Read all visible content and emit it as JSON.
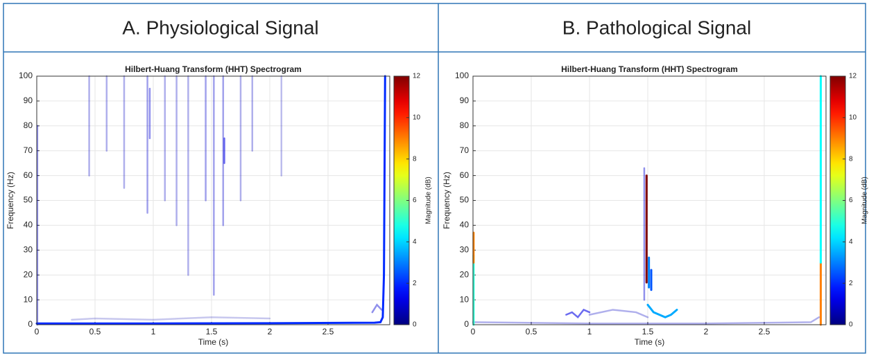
{
  "chart_data": [
    {
      "type": "spectrogram",
      "panel_title": "A. Physiological Signal",
      "title": "Hilbert-Huang Transform (HHT) Spectrogram",
      "x_label": "Time (s)",
      "y_label": "Frequency (Hz)",
      "xlim": [
        0,
        3.03
      ],
      "xticks": [
        0,
        0.5,
        1,
        1.5,
        2,
        2.5
      ],
      "ylim": [
        0,
        100
      ],
      "yticks": [
        0,
        10,
        20,
        30,
        40,
        50,
        60,
        70,
        80,
        90,
        100
      ],
      "grid": true,
      "colorbar": {
        "label": "Magnitude (dB)",
        "lim": [
          0,
          12
        ],
        "ticks": [
          0,
          2,
          4,
          6,
          8,
          10,
          12
        ],
        "colormap": "jet"
      },
      "traces": [
        {
          "x": [
            0.45,
            0.45
          ],
          "y": [
            100,
            60
          ],
          "magnitude": 0.8
        },
        {
          "x": [
            0.6,
            0.6
          ],
          "y": [
            100,
            70
          ],
          "magnitude": 0.8
        },
        {
          "x": [
            0.75,
            0.75
          ],
          "y": [
            100,
            55
          ],
          "magnitude": 0.8
        },
        {
          "x": [
            0.95,
            0.95
          ],
          "y": [
            100,
            45
          ],
          "magnitude": 0.9
        },
        {
          "x": [
            0.97,
            0.97
          ],
          "y": [
            95,
            75
          ],
          "magnitude": 1
        },
        {
          "x": [
            1.1,
            1.1
          ],
          "y": [
            100,
            50
          ],
          "magnitude": 0.8
        },
        {
          "x": [
            1.2,
            1.2
          ],
          "y": [
            100,
            40
          ],
          "magnitude": 0.8
        },
        {
          "x": [
            1.3,
            1.3
          ],
          "y": [
            100,
            20
          ],
          "magnitude": 0.8
        },
        {
          "x": [
            1.45,
            1.45
          ],
          "y": [
            100,
            50
          ],
          "magnitude": 0.9
        },
        {
          "x": [
            1.52,
            1.52
          ],
          "y": [
            100,
            12
          ],
          "magnitude": 0.9
        },
        {
          "x": [
            1.6,
            1.6
          ],
          "y": [
            100,
            40
          ],
          "magnitude": 0.9
        },
        {
          "x": [
            1.61,
            1.61
          ],
          "y": [
            75,
            65
          ],
          "magnitude": 1.2
        },
        {
          "x": [
            1.75,
            1.75
          ],
          "y": [
            100,
            50
          ],
          "magnitude": 0.8
        },
        {
          "x": [
            1.85,
            1.85
          ],
          "y": [
            100,
            70
          ],
          "magnitude": 0.8
        },
        {
          "x": [
            2.1,
            2.1
          ],
          "y": [
            100,
            60
          ],
          "magnitude": 0.7
        },
        {
          "x": [
            0.005,
            0.005
          ],
          "y": [
            0,
            80
          ],
          "magnitude": 1
        },
        {
          "x": [
            0.3,
            0.5,
            1,
            1.5,
            2
          ],
          "y": [
            2,
            2.5,
            2,
            3,
            2.5
          ],
          "magnitude": 0.6
        },
        {
          "x": [
            2.88,
            2.92,
            2.96
          ],
          "y": [
            5,
            8,
            6
          ],
          "magnitude": 1
        },
        {
          "x": [
            0,
            1,
            2,
            2.9,
            2.95,
            2.97,
            2.98,
            2.99
          ],
          "y": [
            0.5,
            0.5,
            0.6,
            0.8,
            1,
            3,
            20,
            100
          ],
          "magnitude": 2
        }
      ]
    },
    {
      "type": "spectrogram",
      "panel_title": "B. Pathological Signal",
      "title": "Hilbert-Huang Transform (HHT) Spectrogram",
      "x_label": "Time (s)",
      "y_label": "Frequency (Hz)",
      "xlim": [
        0,
        3.03
      ],
      "xticks": [
        0,
        0.5,
        1,
        1.5,
        2,
        2.5
      ],
      "ylim": [
        0,
        100
      ],
      "yticks": [
        0,
        10,
        20,
        30,
        40,
        50,
        60,
        70,
        80,
        90,
        100
      ],
      "grid": true,
      "colorbar": {
        "label": "Magnitude (dB)",
        "lim": [
          0,
          12
        ],
        "ticks": [
          0,
          2,
          4,
          6,
          8,
          10,
          12
        ],
        "colormap": "jet"
      },
      "traces": [
        {
          "x": [
            0,
            1,
            2,
            2.9,
            2.97
          ],
          "y": [
            1,
            0.5,
            0.5,
            1,
            3
          ],
          "magnitude": 0.8
        },
        {
          "x": [
            0.8,
            0.85,
            0.9,
            0.95,
            1.0
          ],
          "y": [
            4,
            5,
            3,
            6,
            5
          ],
          "magnitude": 1.2
        },
        {
          "x": [
            1.0,
            1.2,
            1.4,
            1.5
          ],
          "y": [
            4,
            6,
            5,
            3
          ],
          "magnitude": 0.8
        },
        {
          "x": [
            1.47,
            1.47
          ],
          "y": [
            10,
            63
          ],
          "magnitude": 1
        },
        {
          "x": [
            0.005,
            0.005
          ],
          "y": [
            0,
            28
          ],
          "magnitude": 5
        },
        {
          "x": [
            0.005,
            0.005
          ],
          "y": [
            25,
            37
          ],
          "magnitude": 9
        },
        {
          "x": [
            1.49,
            1.49
          ],
          "y": [
            17,
            60
          ],
          "magnitude": 12
        },
        {
          "x": [
            1.51,
            1.51
          ],
          "y": [
            15,
            27
          ],
          "magnitude": 3
        },
        {
          "x": [
            1.53,
            1.53
          ],
          "y": [
            14,
            22
          ],
          "magnitude": 2.5
        },
        {
          "x": [
            1.5,
            1.55,
            1.6,
            1.65,
            1.7,
            1.75
          ],
          "y": [
            8,
            5,
            4,
            3,
            4,
            6
          ],
          "magnitude": 3.5
        },
        {
          "x": [
            2.985,
            2.985
          ],
          "y": [
            0,
            25
          ],
          "magnitude": 9
        },
        {
          "x": [
            2.985,
            2.985
          ],
          "y": [
            25,
            100
          ],
          "magnitude": 4.5
        }
      ]
    }
  ]
}
